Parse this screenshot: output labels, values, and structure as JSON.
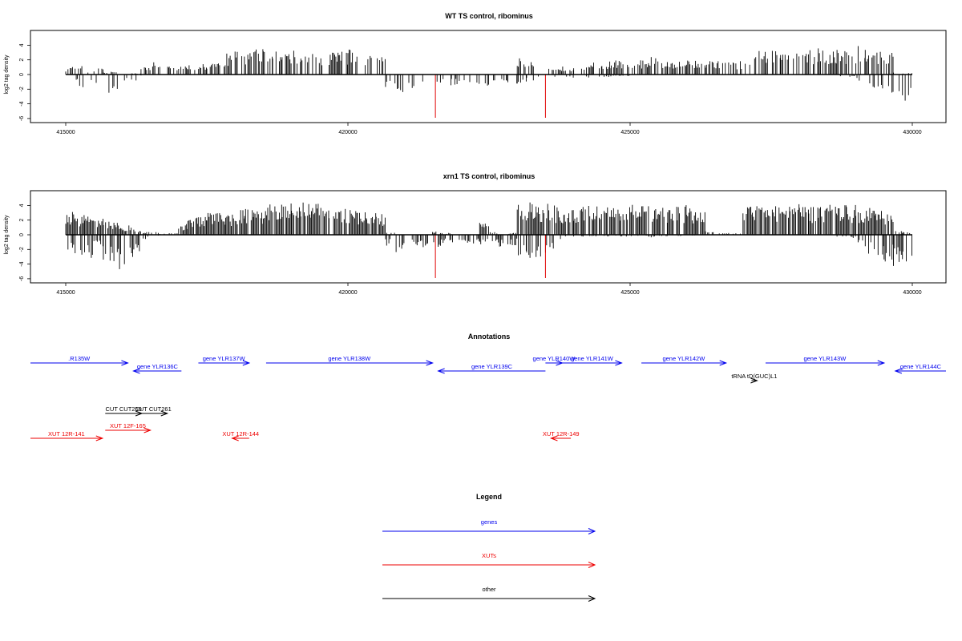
{
  "chart_data": [
    {
      "type": "bar",
      "title": "WT TS control, ribominus",
      "ylabel": "log2 tag density",
      "xlim": [
        415000,
        430000
      ],
      "ylim": [
        -6,
        5.5
      ],
      "xticks": [
        415000,
        420000,
        425000,
        430000
      ],
      "yticks": [
        -6,
        -4,
        -2,
        0,
        2,
        4
      ],
      "highlight_color": "#e00000",
      "highlighted_bars": [
        {
          "x": 421550,
          "value": -5.9
        },
        {
          "x": 423500,
          "value": -5.9
        }
      ],
      "density_profile": {
        "bin_width_bp": 250,
        "positive_mean_height": [
          0.8,
          1.1,
          0.3,
          0.7,
          0.3,
          0.4,
          0.2,
          0.2,
          0.9,
          1.3,
          0.9,
          0.9,
          1.0,
          1.0,
          1.2,
          1.2,
          1.3,
          2.2,
          2.6,
          2.6,
          2.7,
          2.5,
          2.6,
          2.2,
          2.5,
          2.3,
          2.8,
          2.4,
          2.3,
          2.6,
          2.7,
          2.5,
          2.2,
          2.0,
          0.5,
          0.0,
          0.0,
          0.0,
          0.0,
          0.0,
          0.0,
          0.0,
          0.0,
          0.0,
          0.0,
          0.0,
          0.0,
          0.0,
          1.8,
          1.3,
          0.0,
          0.6,
          0.9,
          0.7,
          0.9,
          1.2,
          1.3,
          1.4,
          1.6,
          1.5,
          1.3,
          1.5,
          1.9,
          1.6,
          1.5,
          1.4,
          1.5,
          1.3,
          1.4,
          1.6,
          1.5,
          1.4,
          2.5,
          2.8,
          2.6,
          2.7,
          2.7,
          2.5,
          2.6,
          2.7,
          2.8,
          2.6,
          2.8,
          2.5,
          3.0,
          2.7,
          2.5,
          2.3,
          0.5,
          0.2
        ],
        "negative_mean_depth": [
          1.5,
          1.5,
          0.8,
          1.6,
          2.5,
          2.0,
          0.9,
          0.8,
          0.2,
          0.1,
          0.1,
          0.1,
          0.1,
          0.1,
          0.0,
          0.0,
          0.0,
          0.0,
          0.0,
          0.0,
          0.0,
          0.0,
          0.0,
          0.0,
          0.0,
          0.0,
          0.0,
          0.0,
          0.0,
          0.0,
          0.0,
          0.0,
          0.0,
          0.0,
          1.5,
          2.2,
          1.8,
          2.0,
          1.5,
          1.8,
          1.4,
          1.2,
          1.1,
          1.6,
          1.5,
          1.3,
          0.9,
          1.3,
          1.1,
          0.8,
          0.3,
          0.3,
          0.3,
          0.5,
          0.4,
          0.5,
          0.6,
          0.3,
          0.2,
          0.2,
          0.1,
          0.1,
          0.1,
          0.1,
          0.1,
          0.1,
          0.1,
          0.1,
          0.1,
          0.1,
          0.1,
          0.1,
          0.1,
          0.1,
          0.1,
          0.1,
          0.1,
          0.1,
          0.1,
          0.1,
          0.1,
          0.1,
          0.2,
          0.3,
          1.0,
          1.5,
          1.8,
          2.2,
          2.8,
          3.4
        ]
      }
    },
    {
      "type": "bar",
      "title": "xrn1 TS control, ribominus",
      "ylabel": "log2 tag density",
      "xlim": [
        415000,
        430000
      ],
      "ylim": [
        -6,
        5.5
      ],
      "xticks": [
        415000,
        420000,
        425000,
        430000
      ],
      "yticks": [
        -6,
        -4,
        -2,
        0,
        2,
        4
      ],
      "highlight_color": "#e00000",
      "highlighted_bars": [
        {
          "x": 421550,
          "value": -5.9
        },
        {
          "x": 423500,
          "value": -5.9
        }
      ],
      "density_profile": {
        "bin_width_bp": 250,
        "positive_mean_height": [
          2.4,
          2.2,
          2.0,
          1.8,
          1.6,
          1.3,
          1.0,
          0.6,
          0.3,
          0.3,
          0.2,
          0.3,
          1.2,
          1.8,
          2.1,
          2.3,
          2.5,
          2.2,
          2.6,
          2.8,
          2.6,
          3.2,
          3.5,
          3.5,
          3.3,
          3.4,
          3.5,
          3.1,
          3.0,
          2.8,
          2.6,
          2.4,
          2.3,
          2.2,
          0.3,
          0.1,
          0.1,
          0.1,
          0.1,
          0.4,
          0.2,
          0.1,
          0.1,
          0.1,
          1.4,
          0.3,
          0.1,
          0.2,
          3.3,
          3.4,
          3.1,
          3.4,
          3.0,
          3.1,
          3.2,
          3.3,
          3.1,
          3.2,
          3.0,
          3.1,
          3.2,
          3.2,
          3.1,
          3.0,
          3.0,
          3.1,
          2.8,
          2.6,
          0.4,
          0.2,
          0.2,
          0.2,
          3.0,
          3.1,
          3.4,
          3.2,
          3.2,
          3.3,
          3.2,
          3.0,
          3.2,
          3.4,
          3.1,
          3.2,
          3.1,
          3.0,
          2.9,
          2.6,
          0.4,
          0.3
        ],
        "negative_mean_depth": [
          2.0,
          2.6,
          2.8,
          1.7,
          3.6,
          4.2,
          3.4,
          2.6,
          0.5,
          0.2,
          0.1,
          0.1,
          0.1,
          0.1,
          0.1,
          0.1,
          0.1,
          0.1,
          0.1,
          0.1,
          0.1,
          0.1,
          0.1,
          0.1,
          0.1,
          0.1,
          0.1,
          0.1,
          0.1,
          0.1,
          0.1,
          0.1,
          0.1,
          0.1,
          1.4,
          2.0,
          1.6,
          1.3,
          1.4,
          1.4,
          1.1,
          1.0,
          0.9,
          1.2,
          1.3,
          1.1,
          1.4,
          1.2,
          2.8,
          3.2,
          2.6,
          2.2,
          0.5,
          0.3,
          0.2,
          0.2,
          0.3,
          0.2,
          0.2,
          0.2,
          0.2,
          0.2,
          0.3,
          0.2,
          0.2,
          0.2,
          0.2,
          0.2,
          0.1,
          0.1,
          0.1,
          0.1,
          0.1,
          0.1,
          0.1,
          0.1,
          0.1,
          0.1,
          0.1,
          0.1,
          0.1,
          0.1,
          0.3,
          0.5,
          1.3,
          2.2,
          2.8,
          3.3,
          3.8,
          4.3
        ]
      }
    }
  ],
  "annotations": {
    "title": "Annotations",
    "features": [
      {
        "label": ".R135W",
        "kind": "gene",
        "strand": "+",
        "start": 414000,
        "end": 416100
      },
      {
        "label": "gene YLR136C",
        "kind": "gene",
        "strand": "-",
        "start": 416200,
        "end": 417050
      },
      {
        "label": "gene YLR137W",
        "kind": "gene",
        "strand": "+",
        "start": 417350,
        "end": 418250
      },
      {
        "label": "gene YLR138W",
        "kind": "gene",
        "strand": "+",
        "start": 418550,
        "end": 421500
      },
      {
        "label": "gene YLR139C",
        "kind": "gene",
        "strand": "-",
        "start": 421600,
        "end": 423500
      },
      {
        "label": "gene YLR140W",
        "kind": "gene",
        "strand": "+",
        "start": 423500,
        "end": 423800
      },
      {
        "label": "gene YLR141W",
        "kind": "gene",
        "strand": "+",
        "start": 423800,
        "end": 424850
      },
      {
        "label": "gene YLR142W",
        "kind": "gene",
        "strand": "+",
        "start": 425200,
        "end": 426700
      },
      {
        "label": "gene YLR143W",
        "kind": "gene",
        "strand": "+",
        "start": 427400,
        "end": 429500
      },
      {
        "label": "gene YLR144C",
        "kind": "gene",
        "strand": "-",
        "start": 429700,
        "end": 431500
      },
      {
        "label": "tRNA tD(GUC)L1",
        "kind": "other",
        "strand": "+",
        "start": 427150,
        "end": 427250
      },
      {
        "label": "CUT CUT259",
        "kind": "other",
        "strand": "+",
        "start": 415700,
        "end": 416350
      },
      {
        "label": "CUT CUT261",
        "kind": "other",
        "strand": "+",
        "start": 416300,
        "end": 416800
      },
      {
        "label": "XUT 12R-141",
        "kind": "XUT",
        "strand": "+",
        "start": 414000,
        "end": 415650
      },
      {
        "label": "XUT 12F-165",
        "kind": "XUT",
        "strand": "+",
        "start": 415700,
        "end": 416500
      },
      {
        "label": "XUT 12R-144",
        "kind": "XUT",
        "strand": "-",
        "start": 417950,
        "end": 418250
      },
      {
        "label": "XUT 12R-149",
        "kind": "XUT",
        "strand": "-",
        "start": 423600,
        "end": 423950
      }
    ]
  },
  "legend": {
    "title": "Legend",
    "items": [
      {
        "label": "genes",
        "color": "#0000ee"
      },
      {
        "label": "XUTs",
        "color": "#ee0000"
      },
      {
        "label": "other",
        "color": "#000000"
      }
    ]
  }
}
